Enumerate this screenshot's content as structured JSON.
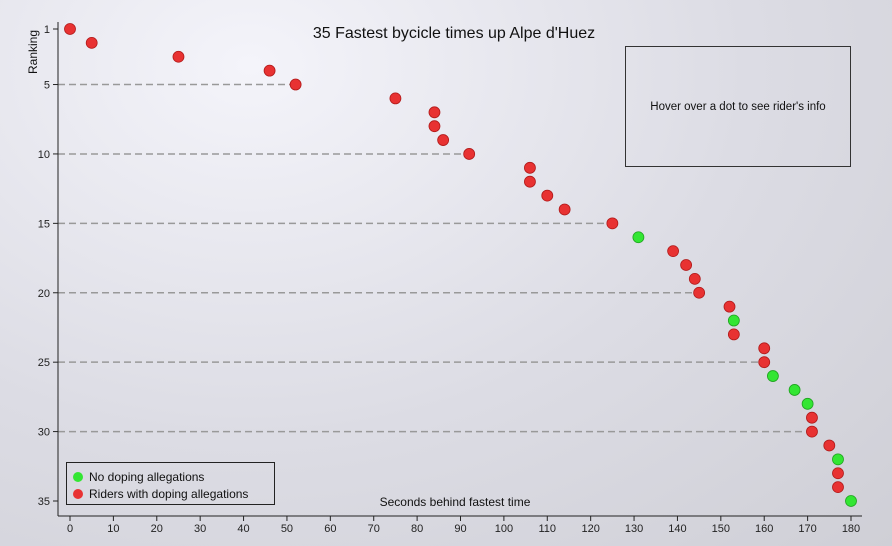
{
  "info_text": "Hover over a dot to see rider's info",
  "colors": {
    "no_doping": "#33e633",
    "doping": "#e83232",
    "grid": "#999999"
  },
  "chart_data": {
    "type": "scatter",
    "title": "35 Fastest bycicle times up Alpe d'Huez",
    "xlabel": "Seconds behind fastest time",
    "ylabel": "Ranking",
    "xlim": [
      -2,
      182
    ],
    "ylim": [
      1,
      35
    ],
    "y_reversed": true,
    "x_ticks": [
      0,
      10,
      20,
      30,
      40,
      50,
      60,
      70,
      80,
      90,
      100,
      110,
      120,
      130,
      140,
      150,
      160,
      170,
      180
    ],
    "y_ticks": [
      1,
      5,
      10,
      15,
      20,
      25,
      30,
      35
    ],
    "grid": "horizontal dashed lines at y ticks, extending to data",
    "legend": {
      "position": "bottom-left",
      "entries": [
        {
          "label": "No doping allegations",
          "group": "no_doping"
        },
        {
          "label": "Riders with doping allegations",
          "group": "doping"
        }
      ]
    },
    "points": [
      {
        "x": 0,
        "y": 1,
        "group": "doping"
      },
      {
        "x": 5,
        "y": 2,
        "group": "doping"
      },
      {
        "x": 25,
        "y": 3,
        "group": "doping"
      },
      {
        "x": 46,
        "y": 4,
        "group": "doping"
      },
      {
        "x": 52,
        "y": 5,
        "group": "doping"
      },
      {
        "x": 75,
        "y": 6,
        "group": "doping"
      },
      {
        "x": 84,
        "y": 7,
        "group": "doping"
      },
      {
        "x": 84,
        "y": 8,
        "group": "doping"
      },
      {
        "x": 86,
        "y": 9,
        "group": "doping"
      },
      {
        "x": 92,
        "y": 10,
        "group": "doping"
      },
      {
        "x": 106,
        "y": 11,
        "group": "doping"
      },
      {
        "x": 106,
        "y": 12,
        "group": "doping"
      },
      {
        "x": 110,
        "y": 13,
        "group": "doping"
      },
      {
        "x": 114,
        "y": 14,
        "group": "doping"
      },
      {
        "x": 125,
        "y": 15,
        "group": "doping"
      },
      {
        "x": 131,
        "y": 16,
        "group": "no_doping"
      },
      {
        "x": 139,
        "y": 17,
        "group": "doping"
      },
      {
        "x": 142,
        "y": 18,
        "group": "doping"
      },
      {
        "x": 144,
        "y": 19,
        "group": "doping"
      },
      {
        "x": 145,
        "y": 20,
        "group": "doping"
      },
      {
        "x": 152,
        "y": 21,
        "group": "doping"
      },
      {
        "x": 153,
        "y": 22,
        "group": "no_doping"
      },
      {
        "x": 153,
        "y": 23,
        "group": "doping"
      },
      {
        "x": 160,
        "y": 24,
        "group": "doping"
      },
      {
        "x": 160,
        "y": 25,
        "group": "doping"
      },
      {
        "x": 162,
        "y": 26,
        "group": "no_doping"
      },
      {
        "x": 167,
        "y": 27,
        "group": "no_doping"
      },
      {
        "x": 170,
        "y": 28,
        "group": "no_doping"
      },
      {
        "x": 171,
        "y": 29,
        "group": "doping"
      },
      {
        "x": 171,
        "y": 30,
        "group": "doping"
      },
      {
        "x": 175,
        "y": 31,
        "group": "doping"
      },
      {
        "x": 177,
        "y": 32,
        "group": "no_doping"
      },
      {
        "x": 177,
        "y": 33,
        "group": "doping"
      },
      {
        "x": 177,
        "y": 34,
        "group": "doping"
      },
      {
        "x": 180,
        "y": 35,
        "group": "no_doping"
      }
    ]
  }
}
